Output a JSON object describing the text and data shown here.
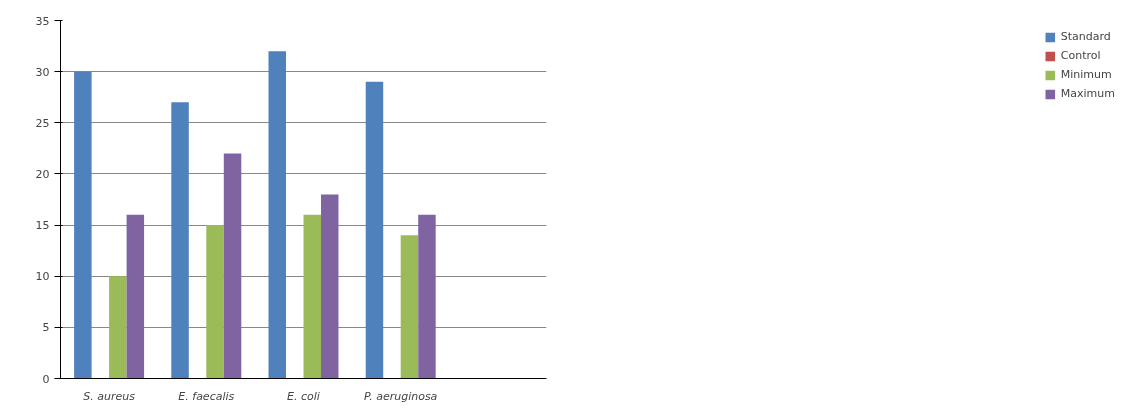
{
  "chart_data": {
    "type": "bar",
    "categories": [
      "S. aureus",
      "E. faecalis",
      "E. coli",
      "P. aeruginosa",
      null
    ],
    "series": [
      {
        "name": "Standard",
        "color": "#4f81bd",
        "values": [
          30,
          27,
          32,
          29,
          null
        ]
      },
      {
        "name": "Control",
        "color": "#c0504d",
        "values": [
          0,
          0,
          0,
          0,
          null
        ]
      },
      {
        "name": "Minimum",
        "color": "#9bbb59",
        "values": [
          10,
          15,
          16,
          14,
          null
        ]
      },
      {
        "name": "Maximum",
        "color": "#8064a2",
        "values": [
          16,
          22,
          18,
          16,
          null
        ]
      }
    ],
    "ylim": [
      0,
      35
    ],
    "yticks": [
      0,
      5,
      10,
      15,
      20,
      25,
      30,
      35
    ],
    "grid": "y",
    "legend": "right"
  }
}
